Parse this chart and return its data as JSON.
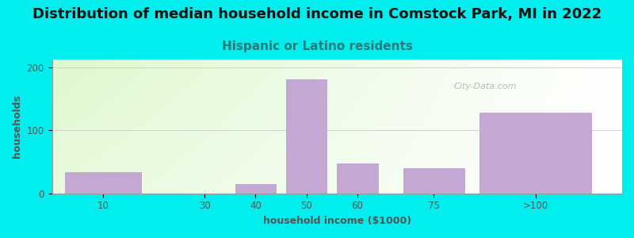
{
  "title": "Distribution of median household income in Comstock Park, MI in 2022",
  "subtitle": "Hispanic or Latino residents",
  "xlabel": "household income ($1000)",
  "ylabel": "households",
  "background_color": "#00EEEE",
  "bar_color": "#c4a8d4",
  "bar_edge_color": "#b899cc",
  "categories": [
    "10",
    "30",
    "40",
    "50",
    "60",
    "75",
    ">100"
  ],
  "values": [
    33,
    0,
    15,
    180,
    48,
    40,
    128
  ],
  "bar_positions": [
    1.0,
    3.0,
    4.0,
    5.0,
    6.0,
    7.5,
    9.5
  ],
  "bar_widths": [
    1.5,
    1.5,
    0.8,
    0.8,
    0.8,
    1.2,
    2.2
  ],
  "yticks": [
    0,
    100,
    200
  ],
  "ylim": [
    0,
    212
  ],
  "xlim": [
    0.0,
    11.2
  ],
  "title_fontsize": 13,
  "subtitle_fontsize": 11,
  "axis_label_fontsize": 9,
  "tick_fontsize": 8.5,
  "watermark_text": "City-Data.com",
  "title_color": "#111111",
  "subtitle_color": "#2a7a7a",
  "axis_label_color": "#555555",
  "tick_color": "#555555",
  "grid_color": "#cccccc"
}
